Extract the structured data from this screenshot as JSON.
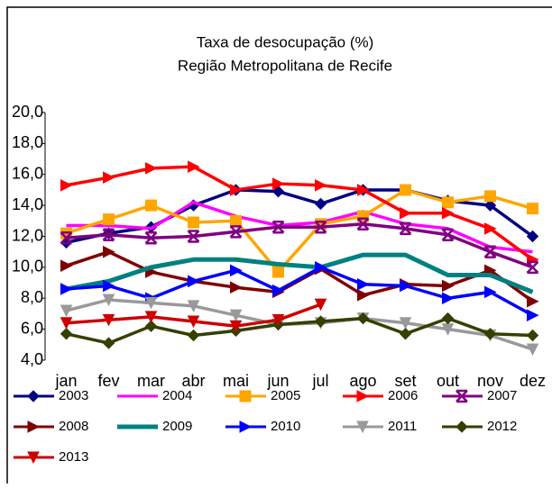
{
  "chart_data": {
    "type": "line",
    "title": "Taxa de desocupação (%)",
    "subtitle": "Região Metropolitana de Recife",
    "categories": [
      "jan",
      "fev",
      "mar",
      "abr",
      "mai",
      "jun",
      "jul",
      "ago",
      "set",
      "out",
      "nov",
      "dez"
    ],
    "ylim": [
      4,
      20
    ],
    "yticks": [
      {
        "value": 4,
        "label": "4,0"
      },
      {
        "value": 6,
        "label": "6,0"
      },
      {
        "value": 8,
        "label": "8,0"
      },
      {
        "value": 10,
        "label": "10,0"
      },
      {
        "value": 12,
        "label": "12,0"
      },
      {
        "value": 14,
        "label": "14,0"
      },
      {
        "value": 16,
        "label": "16,0"
      },
      {
        "value": 18,
        "label": "18,0"
      },
      {
        "value": 20,
        "label": "20,0"
      }
    ],
    "grid": false,
    "legend": "bottom",
    "series": [
      {
        "name": "2003",
        "color": "#000080",
        "marker": "diamond",
        "values": [
          11.6,
          12.2,
          12.6,
          14.0,
          15.0,
          14.9,
          14.1,
          15.0,
          15.0,
          14.3,
          14.0,
          12.0
        ]
      },
      {
        "name": "2004",
        "color": "#ff00ff",
        "marker": "none",
        "values": [
          12.7,
          12.7,
          12.5,
          14.2,
          13.3,
          12.7,
          12.9,
          13.6,
          12.8,
          12.5,
          11.3,
          11.0
        ]
      },
      {
        "name": "2005",
        "color": "#ffa500",
        "marker": "square",
        "values": [
          12.2,
          13.1,
          14.0,
          12.9,
          13.0,
          9.7,
          12.8,
          13.3,
          15.0,
          14.2,
          14.6,
          13.8
        ]
      },
      {
        "name": "2006",
        "color": "#ff0000",
        "marker": "right",
        "values": [
          15.3,
          15.8,
          16.4,
          16.5,
          15.0,
          15.4,
          15.3,
          15.0,
          13.5,
          13.5,
          12.5,
          10.5
        ]
      },
      {
        "name": "2007",
        "color": "#800080",
        "marker": "x",
        "values": [
          11.9,
          12.1,
          11.9,
          12.0,
          12.3,
          12.6,
          12.6,
          12.8,
          12.5,
          12.1,
          11.0,
          10.0
        ]
      },
      {
        "name": "2008",
        "color": "#800000",
        "marker": "right",
        "values": [
          10.1,
          11.0,
          9.7,
          9.1,
          8.7,
          8.4,
          9.9,
          8.2,
          8.9,
          8.8,
          9.8,
          7.8
        ]
      },
      {
        "name": "2009",
        "color": "#008080",
        "marker": "none",
        "values": [
          8.6,
          9.1,
          10.0,
          10.5,
          10.5,
          10.2,
          10.0,
          10.8,
          10.8,
          9.5,
          9.5,
          8.4
        ]
      },
      {
        "name": "2010",
        "color": "#0000ff",
        "marker": "right",
        "values": [
          8.6,
          8.8,
          8.0,
          9.1,
          9.8,
          8.5,
          10.0,
          8.9,
          8.8,
          8.0,
          8.4,
          6.9
        ]
      },
      {
        "name": "2011",
        "color": "#999999",
        "marker": "down",
        "values": [
          7.2,
          7.9,
          7.7,
          7.5,
          6.9,
          6.3,
          6.4,
          6.7,
          6.4,
          6.0,
          5.6,
          4.7
        ]
      },
      {
        "name": "2012",
        "color": "#334000",
        "marker": "diamond",
        "values": [
          5.7,
          5.1,
          6.2,
          5.6,
          5.9,
          6.3,
          6.5,
          6.7,
          5.7,
          6.7,
          5.7,
          5.6
        ]
      },
      {
        "name": "2013",
        "color": "#cc0000",
        "marker": "down",
        "values": [
          6.4,
          6.6,
          6.8,
          6.5,
          6.2,
          6.6,
          7.6,
          null,
          null,
          null,
          null,
          null
        ]
      }
    ]
  }
}
